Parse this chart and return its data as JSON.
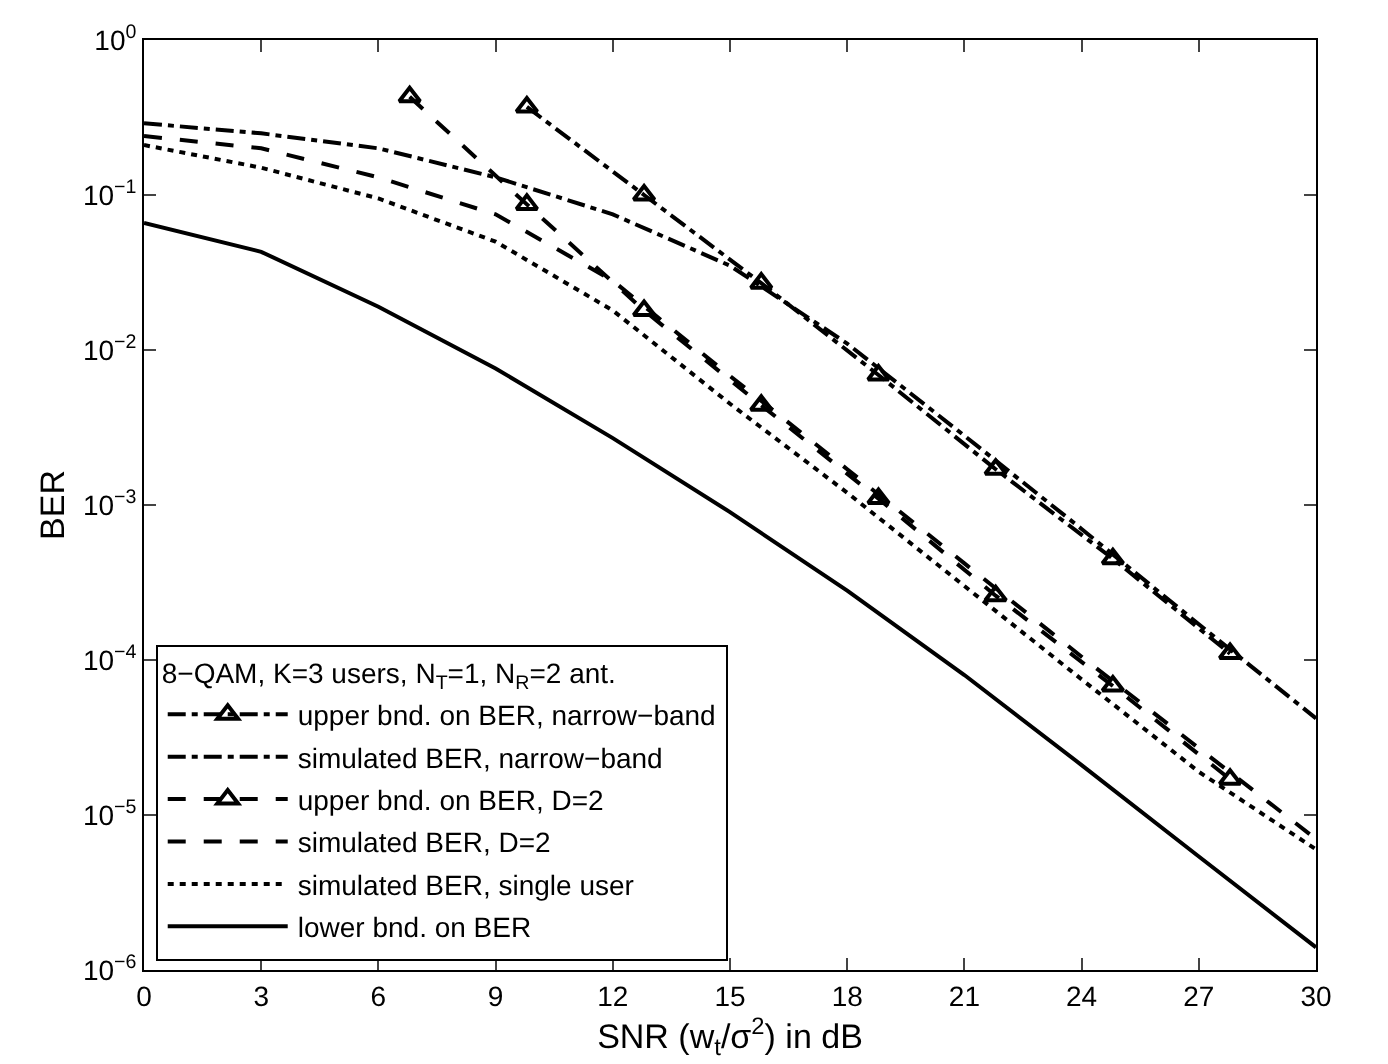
{
  "chart_data": {
    "type": "line",
    "xlabel": "SNR (w$_{t}$/σ$^{2}$) in dB",
    "ylabel": "BER",
    "legend_title": "8−QAM, K=3 users, N$_{T}$=1, N$_{R}$=2 ant.",
    "log": "y",
    "grid": false,
    "legend": "bottom left",
    "xlim": [
      0,
      30
    ],
    "xticks": [
      0,
      3,
      6,
      9,
      12,
      15,
      18,
      21,
      24,
      27,
      30
    ],
    "ylim": [
      1e-06,
      1
    ],
    "yticks": [
      {
        "value": 1e-06,
        "label": "10$^{−6}$"
      },
      {
        "value": 1e-05,
        "label": "10$^{−5}$"
      },
      {
        "value": 0.0001,
        "label": "10$^{−4}$"
      },
      {
        "value": 0.001,
        "label": "10$^{−3}$"
      },
      {
        "value": 0.01,
        "label": "10$^{−2}$"
      },
      {
        "value": 0.1,
        "label": "10$^{−1}$"
      },
      {
        "value": 1,
        "label": "10$^{0}$"
      }
    ],
    "series": [
      {
        "name": "upper bnd. on BER, narrow−band",
        "color": "#000000",
        "line_style": "dashdot",
        "marker": "triangle",
        "x": [
          9.8,
          12.8,
          15.8,
          18.8,
          21.8,
          24.8,
          27.8
        ],
        "values": [
          0.37,
          0.1,
          0.027,
          0.0069,
          0.0017,
          0.00045,
          0.00011
        ]
      },
      {
        "name": "simulated BER, narrow−band",
        "color": "#000000",
        "line_style": "dashdot",
        "marker": "none",
        "x": [
          0,
          3,
          6,
          9,
          12,
          15,
          18,
          21,
          24,
          27,
          30
        ],
        "values": [
          0.29,
          0.25,
          0.2,
          0.13,
          0.075,
          0.035,
          0.011,
          0.0028,
          0.0007,
          0.00017,
          4.2e-05
        ]
      },
      {
        "name": "upper bnd. on BER, D=2",
        "color": "#000000",
        "line_style": "dashed",
        "marker": "triangle",
        "x": [
          6.8,
          9.8,
          12.8,
          15.8,
          18.8,
          21.8,
          24.8,
          27.8
        ],
        "values": [
          0.43,
          0.087,
          0.018,
          0.0044,
          0.0011,
          0.00026,
          6.8e-05,
          1.7e-05
        ]
      },
      {
        "name": "simulated BER, D=2",
        "color": "#000000",
        "line_style": "dashed",
        "marker": "none",
        "x": [
          0,
          3,
          6,
          9,
          12,
          15,
          18,
          21,
          24,
          27,
          30
        ],
        "values": [
          0.24,
          0.2,
          0.13,
          0.075,
          0.028,
          0.0068,
          0.0017,
          0.00042,
          0.000105,
          2.7e-05,
          7e-06
        ]
      },
      {
        "name": "simulated BER, single user",
        "color": "#000000",
        "line_style": "dotted",
        "marker": "none",
        "x": [
          0,
          3,
          6,
          9,
          12,
          15,
          18,
          21,
          24,
          27,
          30
        ],
        "values": [
          0.21,
          0.15,
          0.095,
          0.05,
          0.018,
          0.0045,
          0.0012,
          0.0003,
          7.5e-05,
          1.9e-05,
          6e-06
        ]
      },
      {
        "name": "lower bnd. on BER",
        "color": "#000000",
        "line_style": "solid",
        "marker": "none",
        "x": [
          0,
          3,
          6,
          9,
          12,
          15,
          18,
          21,
          24,
          27,
          30
        ],
        "values": [
          0.066,
          0.043,
          0.019,
          0.0076,
          0.0027,
          0.0009,
          0.00028,
          8e-05,
          2.1e-05,
          5.4e-06,
          1.4e-06
        ]
      }
    ]
  }
}
